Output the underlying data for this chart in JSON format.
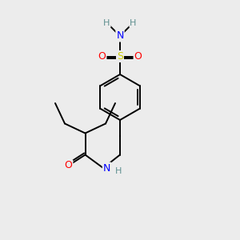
{
  "bg_color": "#ececec",
  "atom_colors": {
    "C": "#000000",
    "H": "#5f9090",
    "N": "#0000ff",
    "O": "#ff0000",
    "S": "#cccc00"
  },
  "bond_color": "#000000",
  "bond_width": 1.4,
  "figsize": [
    3.0,
    3.0
  ],
  "dpi": 100
}
